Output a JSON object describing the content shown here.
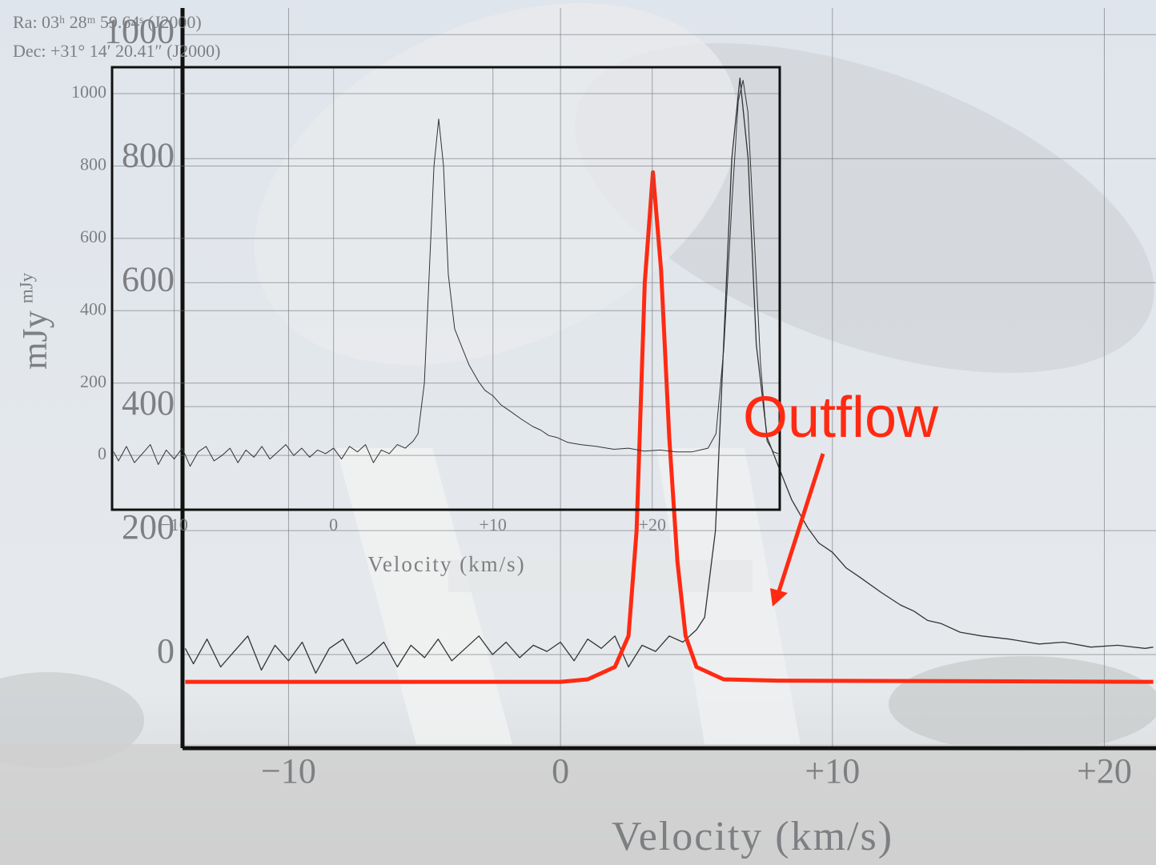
{
  "coordinates": {
    "ra": "Ra: 03ʰ 28ᵐ 59.64ˢ (J2000)",
    "dec": "Dec: +31° 14′ 20.41″ (J2000)"
  },
  "annotation": "Outflow",
  "chart_data": [
    {
      "type": "line",
      "xlabel": "Velocity (km/s)",
      "ylabel": "mJy",
      "xlim": [
        -13.9,
        21.9
      ],
      "ylim": [
        -151,
        1043
      ],
      "xticks": [
        {
          "value": -10,
          "label": "−10"
        },
        0,
        {
          "value": 10,
          "label": "+10"
        },
        {
          "value": 20,
          "label": "+20"
        }
      ],
      "yticks": [
        0,
        200,
        400,
        600,
        800,
        1000
      ],
      "grid": true,
      "series": [
        {
          "color": "#333333",
          "x": [
            -13.8,
            -13.5,
            -13,
            -12.5,
            -12,
            -11.5,
            -11,
            -10.5,
            -10,
            -9.5,
            -9,
            -8.5,
            -8,
            -7.5,
            -7,
            -6.5,
            -6,
            -5.5,
            -5,
            -4.5,
            -4,
            -3.5,
            -3,
            -2.5,
            -2,
            -1.5,
            -1,
            -0.5,
            0,
            0.5,
            1,
            1.5,
            2,
            2.5,
            3,
            3.5,
            4,
            4.5,
            5,
            5.3,
            5.7,
            6,
            6.3,
            6.6,
            6.9,
            7.2,
            7.6,
            8.1,
            8.5,
            9.1,
            9.5,
            10,
            10.5,
            11,
            11.8,
            12.5,
            13,
            13.5,
            14,
            14.7,
            15.5,
            16.5,
            17.6,
            18.5,
            19.5,
            20.5,
            21.5,
            21.8
          ],
          "values": [
            10,
            -15,
            25,
            -20,
            5,
            30,
            -25,
            15,
            -10,
            20,
            -30,
            10,
            25,
            -15,
            0,
            20,
            -20,
            15,
            -5,
            25,
            -10,
            10,
            30,
            0,
            20,
            -5,
            15,
            5,
            20,
            -10,
            25,
            10,
            30,
            -20,
            15,
            5,
            30,
            20,
            40,
            60,
            200,
            500,
            800,
            930,
            800,
            500,
            350,
            294,
            250,
            204,
            180,
            165,
            140,
            125,
            100,
            80,
            70,
            55,
            50,
            36,
            30,
            25,
            17,
            20,
            12,
            15,
            10,
            12
          ]
        },
        {
          "color": "#ff2a12",
          "x": [
            -13.8,
            0,
            1,
            2,
            2.5,
            2.8,
            3.1,
            3.4,
            3.7,
            4.0,
            4.3,
            4.6,
            5,
            6,
            8,
            21.8
          ],
          "values": [
            -44,
            -44,
            -40,
            -20,
            30,
            200,
            600,
            778,
            620,
            350,
            150,
            30,
            -20,
            -40,
            -42,
            -44
          ]
        }
      ]
    },
    {
      "type": "line",
      "xlabel": "Velocity (km/s)",
      "ylabel": "mJy",
      "xlim": [
        -13.9,
        28
      ],
      "ylim": [
        -150,
        1073
      ],
      "xticks": [
        {
          "value": -10,
          "label": "−10"
        },
        0,
        {
          "value": 10,
          "label": "+10"
        },
        {
          "value": 20,
          "label": "+20"
        }
      ],
      "yticks": [
        0,
        200,
        400,
        600,
        800,
        1000
      ],
      "grid": true,
      "series": [
        {
          "color": "#333333",
          "x": [
            -13.8,
            -13.5,
            -13,
            -12.5,
            -12,
            -11.5,
            -11,
            -10.5,
            -10,
            -9.5,
            -9,
            -8.5,
            -8,
            -7.5,
            -7,
            -6.5,
            -6,
            -5.5,
            -5,
            -4.5,
            -4,
            -3.5,
            -3,
            -2.5,
            -2,
            -1.5,
            -1,
            -0.5,
            0,
            0.5,
            1,
            1.5,
            2,
            2.5,
            3,
            3.5,
            4,
            4.5,
            5,
            5.3,
            5.7,
            6,
            6.3,
            6.6,
            6.9,
            7.2,
            7.6,
            8.1,
            8.5,
            9.1,
            9.5,
            10,
            10.5,
            11,
            11.8,
            12.5,
            13,
            13.5,
            14,
            14.7,
            15.5,
            16.5,
            17.6,
            18.5,
            19.5,
            20.5,
            21.5,
            22.5,
            23,
            23.5,
            24,
            24.5,
            25,
            25.4,
            25.7,
            26,
            26.4,
            26.8,
            27.2,
            27.6,
            27.9
          ],
          "values": [
            10,
            -15,
            25,
            -20,
            5,
            30,
            -25,
            15,
            -10,
            20,
            -30,
            10,
            25,
            -15,
            0,
            20,
            -20,
            15,
            -5,
            25,
            -10,
            10,
            30,
            0,
            20,
            -5,
            15,
            5,
            20,
            -10,
            25,
            10,
            30,
            -20,
            15,
            5,
            30,
            20,
            40,
            60,
            200,
            500,
            800,
            930,
            800,
            500,
            350,
            294,
            250,
            204,
            180,
            165,
            140,
            125,
            100,
            80,
            70,
            55,
            50,
            36,
            30,
            25,
            17,
            20,
            12,
            15,
            10,
            10,
            15,
            20,
            60,
            300,
            700,
            980,
            1037,
            950,
            600,
            250,
            40,
            10,
            5
          ]
        }
      ]
    }
  ]
}
